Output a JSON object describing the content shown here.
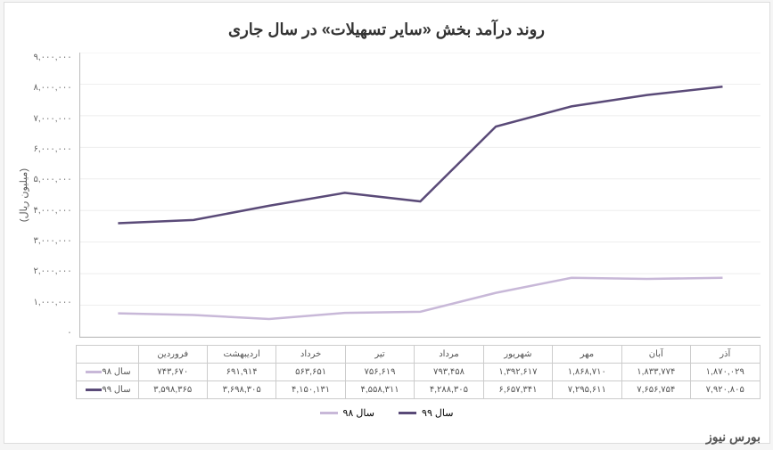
{
  "chart": {
    "title": "روند درآمد بخش «سایر تسهیلات» در سال جاری",
    "type": "line",
    "background_color": "#ffffff",
    "grid_color": "#eeeeee",
    "border_color": "#bbbbbb",
    "y_axis": {
      "label": "(میلیون ریال)",
      "min": 0,
      "max": 9000000,
      "tick_step": 1000000,
      "ticks": [
        "۹,۰۰۰,۰۰۰",
        "۸,۰۰۰,۰۰۰",
        "۷,۰۰۰,۰۰۰",
        "۶,۰۰۰,۰۰۰",
        "۵,۰۰۰,۰۰۰",
        "۴,۰۰۰,۰۰۰",
        "۳,۰۰۰,۰۰۰",
        "۲,۰۰۰,۰۰۰",
        "۱,۰۰۰,۰۰۰",
        "۰"
      ],
      "label_fontsize": 11,
      "tick_fontsize": 10
    },
    "x_categories": [
      "فروردین",
      "اردیبهشت",
      "خرداد",
      "تیر",
      "مرداد",
      "شهریور",
      "مهر",
      "آبان",
      "آذر"
    ],
    "series": [
      {
        "name": "سال ۹۸",
        "color": "#c8b8d8",
        "line_width": 2.5,
        "values": [
          743670,
          691914,
          563651,
          756619,
          793458,
          1392617,
          1868710,
          1833774,
          1870029
        ],
        "display_values": [
          "۷۴۳,۶۷۰",
          "۶۹۱,۹۱۴",
          "۵۶۳,۶۵۱",
          "۷۵۶,۶۱۹",
          "۷۹۳,۴۵۸",
          "۱,۳۹۲,۶۱۷",
          "۱,۸۶۸,۷۱۰",
          "۱,۸۳۳,۷۷۴",
          "۱,۸۷۰,۰۲۹"
        ]
      },
      {
        "name": "سال ۹۹",
        "color": "#5a4a78",
        "line_width": 2.5,
        "values": [
          3598365,
          3698305,
          4150131,
          4558311,
          4288305,
          6657341,
          7295611,
          7656754,
          7920805
        ],
        "display_values": [
          "۳,۵۹۸,۳۶۵",
          "۳,۶۹۸,۳۰۵",
          "۴,۱۵۰,۱۳۱",
          "۴,۵۵۸,۳۱۱",
          "۴,۲۸۸,۳۰۵",
          "۶,۶۵۷,۳۴۱",
          "۷,۲۹۵,۶۱۱",
          "۷,۶۵۶,۷۵۴",
          "۷,۹۲۰,۸۰۵"
        ]
      }
    ],
    "legend": {
      "items": [
        "سال ۹۸",
        "سال ۹۹"
      ],
      "fontsize": 11
    }
  },
  "watermark": "بورس نیوز"
}
